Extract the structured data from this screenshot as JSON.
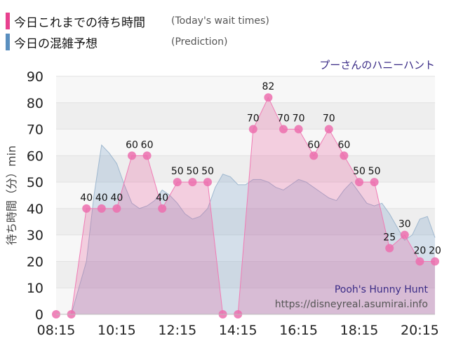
{
  "legend": [
    {
      "label": "今日これまでの待ち時間",
      "note": "(Today's wait times)",
      "color": "#e8418f"
    },
    {
      "label": "今日の混雑予想",
      "note": "(Prediction)",
      "color": "#5a8fbf"
    }
  ],
  "watermark": {
    "name": "Pooh's Hunny Hunt",
    "url": "https://disneyreal.asumirai.info"
  },
  "chart_data": {
    "type": "area",
    "title": "プーさんのハニーハント",
    "ylabel": "待ち時間（分）min",
    "xlabel": "",
    "ylim": [
      0,
      90
    ],
    "yticks": [
      0,
      10,
      20,
      30,
      40,
      50,
      60,
      70,
      80,
      90
    ],
    "xticks": [
      "08:15",
      "10:15",
      "12:15",
      "14:15",
      "16:15",
      "18:15",
      "20:15"
    ],
    "grid": "horizontal",
    "series": [
      {
        "name": "今日これまでの待ち時間",
        "color": "#e8418f",
        "x": [
          "08:15",
          "08:45",
          "09:15",
          "09:45",
          "10:15",
          "10:45",
          "11:15",
          "11:45",
          "12:15",
          "12:45",
          "13:15",
          "13:45",
          "14:15",
          "14:45",
          "15:15",
          "15:45",
          "16:15",
          "16:45",
          "17:15",
          "17:45",
          "18:15",
          "18:45",
          "19:15",
          "19:45",
          "20:15",
          "20:45"
        ],
        "values": [
          0,
          0,
          40,
          40,
          40,
          60,
          60,
          40,
          50,
          50,
          50,
          0,
          0,
          70,
          82,
          70,
          70,
          60,
          70,
          60,
          50,
          50,
          25,
          30,
          20,
          20
        ],
        "data_labels": [
          null,
          null,
          "40",
          "40",
          "40",
          "60",
          "60",
          "40",
          "50",
          "50",
          "50",
          null,
          null,
          "70",
          "82",
          "70",
          "70",
          "60",
          "70",
          "60",
          "50",
          "50",
          "25",
          "30",
          "20",
          "20"
        ]
      },
      {
        "name": "今日の混雑予想",
        "color": "#5a8fbf",
        "x": [
          "08:45",
          "09:15",
          "09:30",
          "09:45",
          "10:00",
          "10:15",
          "10:30",
          "10:45",
          "11:00",
          "11:15",
          "11:30",
          "11:45",
          "12:00",
          "12:15",
          "12:30",
          "12:45",
          "13:00",
          "13:15",
          "13:30",
          "13:45",
          "14:00",
          "14:15",
          "14:30",
          "14:45",
          "15:00",
          "15:15",
          "15:30",
          "15:45",
          "16:00",
          "16:15",
          "16:30",
          "16:45",
          "17:00",
          "17:15",
          "17:30",
          "17:45",
          "18:00",
          "18:15",
          "18:30",
          "18:45",
          "19:00",
          "19:15",
          "19:30",
          "19:45",
          "20:00",
          "20:15",
          "20:30",
          "20:45"
        ],
        "values": [
          0,
          20,
          45,
          64,
          61,
          57,
          49,
          42,
          40,
          41,
          43,
          47,
          45,
          42,
          38,
          36,
          37,
          40,
          48,
          53,
          52,
          49,
          49,
          51,
          51,
          50,
          48,
          47,
          49,
          51,
          50,
          48,
          46,
          44,
          43,
          47,
          50,
          46,
          42,
          41,
          42,
          38,
          33,
          28,
          30,
          36,
          37,
          29
        ]
      }
    ]
  }
}
